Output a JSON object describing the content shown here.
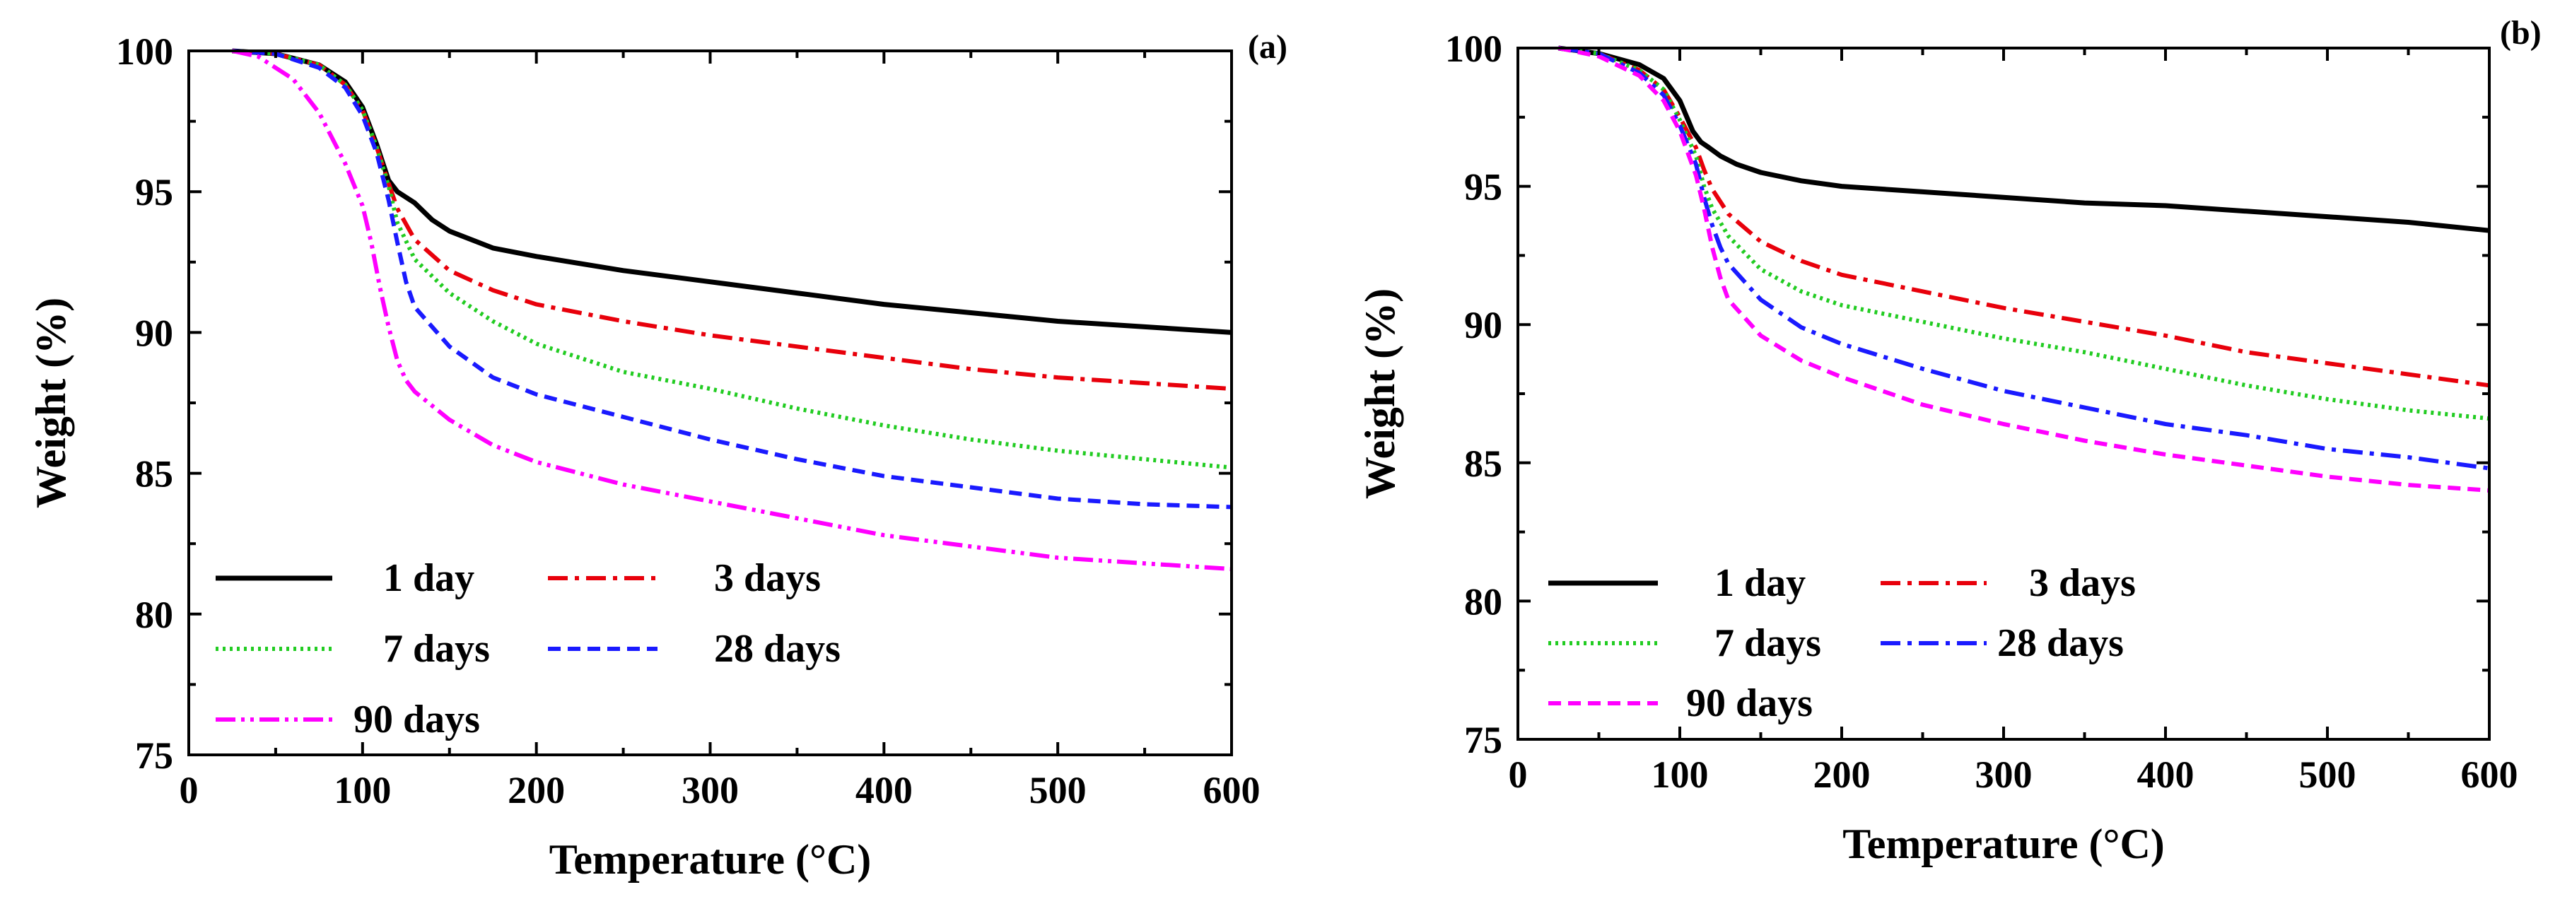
{
  "chart_data": [
    {
      "type": "line",
      "panel_label": "(a)",
      "xlabel": "Temperature (°C)",
      "ylabel": "Weight (%)",
      "xlim": [
        0,
        600
      ],
      "ylim": [
        75,
        100
      ],
      "xticks": [
        0,
        100,
        200,
        300,
        400,
        500,
        600
      ],
      "yticks": [
        75,
        80,
        85,
        90,
        95,
        100
      ],
      "legend_position": "bottom-left",
      "series": [
        {
          "name": "1 day",
          "color": "#000000",
          "dash": "solid",
          "x": [
            25,
            50,
            75,
            90,
            100,
            108,
            115,
            120,
            130,
            140,
            150,
            175,
            200,
            250,
            300,
            350,
            400,
            450,
            500,
            550,
            600
          ],
          "y": [
            100,
            99.9,
            99.5,
            98.9,
            98.0,
            96.7,
            95.4,
            95.0,
            94.6,
            94.0,
            93.6,
            93.0,
            92.7,
            92.2,
            91.8,
            91.4,
            91.0,
            90.7,
            90.4,
            90.2,
            90.0
          ]
        },
        {
          "name": "3 days",
          "color": "#e8000b",
          "dash": "dashdot",
          "x": [
            25,
            50,
            75,
            90,
            100,
            108,
            115,
            120,
            130,
            150,
            175,
            200,
            250,
            300,
            350,
            400,
            450,
            500,
            550,
            600
          ],
          "y": [
            100,
            99.9,
            99.5,
            98.8,
            97.9,
            96.6,
            95.3,
            94.4,
            93.3,
            92.2,
            91.5,
            91.0,
            90.4,
            89.9,
            89.5,
            89.1,
            88.7,
            88.4,
            88.2,
            88.0
          ]
        },
        {
          "name": "7 days",
          "color": "#22cc22",
          "dash": "dotted",
          "x": [
            25,
            50,
            75,
            90,
            100,
            108,
            115,
            120,
            130,
            150,
            175,
            200,
            250,
            300,
            350,
            400,
            450,
            500,
            550,
            600
          ],
          "y": [
            100,
            99.9,
            99.5,
            98.8,
            97.9,
            96.6,
            95.2,
            93.9,
            92.6,
            91.4,
            90.4,
            89.6,
            88.6,
            88.0,
            87.3,
            86.7,
            86.2,
            85.8,
            85.5,
            85.2
          ]
        },
        {
          "name": "28 days",
          "color": "#1a1aff",
          "dash": "dashed",
          "x": [
            25,
            50,
            75,
            90,
            100,
            108,
            115,
            120,
            125,
            130,
            150,
            175,
            200,
            250,
            300,
            350,
            400,
            450,
            500,
            550,
            600
          ],
          "y": [
            100,
            99.9,
            99.4,
            98.7,
            97.7,
            96.4,
            94.7,
            93.2,
            91.8,
            90.9,
            89.5,
            88.4,
            87.8,
            87.0,
            86.2,
            85.5,
            84.9,
            84.5,
            84.1,
            83.9,
            83.8
          ]
        },
        {
          "name": "90 days",
          "color": "#ff00ff",
          "dash": "dashdotdot",
          "x": [
            25,
            40,
            60,
            75,
            90,
            100,
            105,
            110,
            115,
            120,
            125,
            130,
            150,
            175,
            200,
            250,
            300,
            350,
            400,
            450,
            500,
            550,
            600
          ],
          "y": [
            100,
            99.8,
            99.0,
            97.8,
            96.0,
            94.5,
            93.2,
            91.6,
            90.2,
            89.0,
            88.3,
            87.9,
            86.9,
            86.0,
            85.4,
            84.6,
            84.0,
            83.4,
            82.8,
            82.4,
            82.0,
            81.8,
            81.6
          ]
        }
      ]
    },
    {
      "type": "line",
      "panel_label": "(b)",
      "xlabel": "Temperature (°C)",
      "ylabel": "Weight (%)",
      "xlim": [
        0,
        600
      ],
      "ylim": [
        75,
        100
      ],
      "xticks": [
        0,
        100,
        200,
        300,
        400,
        500,
        600
      ],
      "yticks": [
        75,
        80,
        85,
        90,
        95,
        100
      ],
      "legend_position": "bottom-left",
      "series": [
        {
          "name": "1 day",
          "color": "#000000",
          "dash": "solid",
          "x": [
            25,
            50,
            75,
            90,
            100,
            108,
            113,
            118,
            125,
            135,
            150,
            175,
            200,
            250,
            300,
            350,
            400,
            450,
            500,
            550,
            600
          ],
          "y": [
            100,
            99.8,
            99.4,
            98.9,
            98.1,
            97.0,
            96.6,
            96.4,
            96.1,
            95.8,
            95.5,
            95.2,
            95.0,
            94.8,
            94.6,
            94.4,
            94.3,
            94.1,
            93.9,
            93.7,
            93.4
          ]
        },
        {
          "name": "3 days",
          "color": "#e8000b",
          "dash": "dashdot",
          "x": [
            25,
            50,
            75,
            90,
            100,
            110,
            115,
            120,
            130,
            150,
            175,
            200,
            250,
            300,
            350,
            400,
            450,
            500,
            550,
            600
          ],
          "y": [
            100,
            99.8,
            99.2,
            98.5,
            97.5,
            96.4,
            95.6,
            94.9,
            94.0,
            93.0,
            92.3,
            91.8,
            91.2,
            90.6,
            90.1,
            89.6,
            89.0,
            88.6,
            88.2,
            87.8
          ]
        },
        {
          "name": "7 days",
          "color": "#22cc22",
          "dash": "dotted",
          "x": [
            25,
            50,
            75,
            90,
            100,
            110,
            115,
            120,
            130,
            150,
            175,
            200,
            250,
            300,
            350,
            400,
            450,
            500,
            550,
            600
          ],
          "y": [
            100,
            99.8,
            99.2,
            98.5,
            97.4,
            96.1,
            95.0,
            94.2,
            93.2,
            92.0,
            91.2,
            90.7,
            90.1,
            89.5,
            89.0,
            88.4,
            87.8,
            87.3,
            86.9,
            86.6
          ]
        },
        {
          "name": "28 days",
          "color": "#1a1aff",
          "dash": "dashdot",
          "x": [
            25,
            50,
            75,
            90,
            100,
            110,
            115,
            120,
            125,
            130,
            150,
            175,
            200,
            250,
            300,
            350,
            400,
            450,
            500,
            550,
            600
          ],
          "y": [
            100,
            99.8,
            99.1,
            98.3,
            97.2,
            95.8,
            94.6,
            93.6,
            92.8,
            92.2,
            90.9,
            89.9,
            89.3,
            88.4,
            87.6,
            87.0,
            86.4,
            86.0,
            85.5,
            85.2,
            84.8
          ]
        },
        {
          "name": "90 days",
          "color": "#ff00ff",
          "dash": "dashed",
          "x": [
            25,
            50,
            75,
            90,
            100,
            110,
            115,
            120,
            125,
            130,
            150,
            175,
            200,
            250,
            300,
            350,
            400,
            450,
            500,
            550,
            600
          ],
          "y": [
            100,
            99.7,
            99.0,
            98.1,
            97.0,
            95.4,
            94.2,
            92.8,
            91.7,
            90.9,
            89.6,
            88.7,
            88.1,
            87.1,
            86.4,
            85.8,
            85.3,
            84.9,
            84.5,
            84.2,
            84.0
          ]
        }
      ]
    }
  ]
}
